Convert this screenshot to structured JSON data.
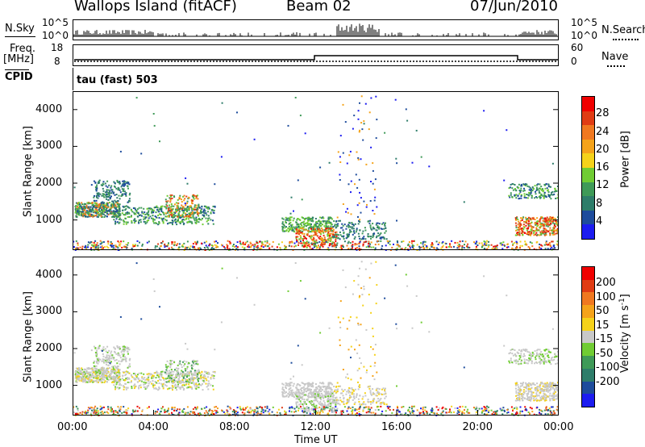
{
  "header": {
    "station": "Wallops Island (fitACF)",
    "beam": "Beam 02",
    "date": "07/Jun/2010"
  },
  "sky_panel": {
    "label": "N.Sky",
    "right_label": "N.Search",
    "tick_top": "10^5",
    "tick_bottom": "10^0",
    "right_tick_top": "10^5",
    "right_tick_bottom": "10^0"
  },
  "freq_panel": {
    "label_top": "Freq.",
    "label_unit": "[MHz]",
    "tick_top": "18",
    "tick_bottom": "8",
    "right_tick_top": "60",
    "right_tick_bottom": "0",
    "right_label": "Nave"
  },
  "cpid": {
    "label": "CPID",
    "mode": "tau (fast) 503"
  },
  "chart_data": [
    {
      "type": "heatmap",
      "name": "power",
      "ylabel": "Slant Range [km]",
      "xlim_hours": [
        0,
        24
      ],
      "ylim": [
        180,
        4500
      ],
      "yticks": [
        "1000",
        "2000",
        "3000",
        "4000"
      ],
      "colorbar": {
        "label": "Power [dB]",
        "ticks": [
          "4",
          "8",
          "12",
          "16",
          "20",
          "24",
          "28"
        ],
        "colors": [
          "#1c1cf0",
          "#1e4c9c",
          "#2e7d6a",
          "#3f9a58",
          "#70cc33",
          "#f5d21a",
          "#f5a31a",
          "#f07820",
          "#e03c14",
          "#f00000"
        ]
      }
    },
    {
      "type": "heatmap",
      "name": "velocity",
      "ylabel": "Slant Range [km]",
      "xlabel": "Time UT",
      "xlim_hours": [
        0,
        24
      ],
      "ylim": [
        180,
        4500
      ],
      "yticks": [
        "1000",
        "2000",
        "3000",
        "4000"
      ],
      "xticks": [
        "00:00",
        "04:00",
        "08:00",
        "12:00",
        "16:00",
        "20:00",
        "00:00"
      ],
      "colorbar": {
        "label_main": "Velocity [m s",
        "label_sup": "-1",
        "label_end": "]",
        "ticks": [
          "200",
          "100",
          "50",
          "15",
          "-15",
          "-50",
          "-100",
          "-200"
        ],
        "colors": [
          "#1c1cf0",
          "#1e4c9c",
          "#2e7d6a",
          "#3f9a58",
          "#70cc33",
          "#c8c8c8",
          "#f5d21a",
          "#f5a31a",
          "#f07820",
          "#e03c14",
          "#f00000"
        ]
      }
    }
  ]
}
